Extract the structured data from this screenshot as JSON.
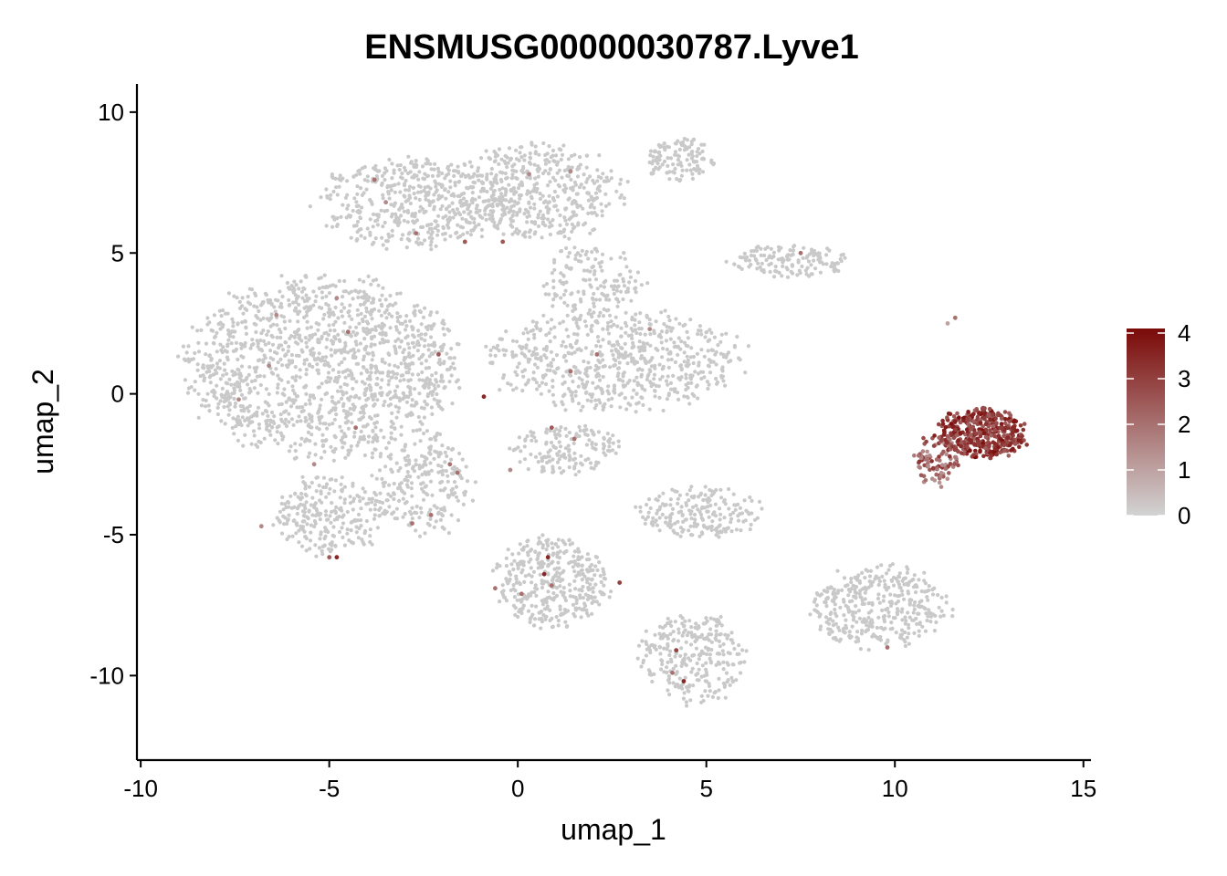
{
  "chart_data": {
    "type": "scatter",
    "title": "ENSMUSG00000030787.Lyve1",
    "xlabel": "umap_1",
    "ylabel": "umap_2",
    "xlim": [
      -10.1,
      15.2
    ],
    "ylim": [
      -13,
      11
    ],
    "xticks": [
      -10,
      -5,
      0,
      5,
      10,
      15
    ],
    "xtick_labels": [
      "-10",
      "-5",
      "0",
      "5",
      "10",
      "15"
    ],
    "yticks": [
      -10,
      -5,
      0,
      5,
      10
    ],
    "ytick_labels": [
      "-10",
      "-5",
      "0",
      "5",
      "10"
    ],
    "grid": false,
    "legend": {
      "position": "right",
      "type": "colorbar",
      "min": 0,
      "max": 4.1,
      "ticks": [
        0,
        1,
        2,
        3,
        4
      ],
      "tick_labels": [
        "0",
        "1",
        "2",
        "3",
        "4"
      ],
      "low_color": "#d3d3d3",
      "high_color": "#7a0a08"
    },
    "point_color_low": "#c9c9c9",
    "clusters": [
      {
        "cx": -5.2,
        "cy": 1.0,
        "rx": 3.6,
        "ry": 3.2,
        "n": 1400
      },
      {
        "cx": -5.0,
        "cy": -4.3,
        "rx": 1.5,
        "ry": 1.4,
        "n": 250
      },
      {
        "cx": -2.8,
        "cy": 6.8,
        "rx": 2.6,
        "ry": 1.6,
        "n": 500
      },
      {
        "cx": 0.6,
        "cy": 7.2,
        "rx": 2.2,
        "ry": 1.7,
        "n": 450
      },
      {
        "cx": 4.3,
        "cy": 8.3,
        "rx": 0.9,
        "ry": 0.8,
        "n": 120
      },
      {
        "cx": 2.6,
        "cy": 1.2,
        "rx": 3.4,
        "ry": 1.8,
        "n": 650
      },
      {
        "cx": 2.0,
        "cy": 4.0,
        "rx": 1.4,
        "ry": 1.3,
        "n": 150
      },
      {
        "cx": -2.5,
        "cy": -3.2,
        "rx": 1.3,
        "ry": 1.8,
        "n": 230
      },
      {
        "cx": 1.2,
        "cy": -2.0,
        "rx": 1.5,
        "ry": 0.9,
        "n": 160
      },
      {
        "cx": 0.9,
        "cy": -6.7,
        "rx": 1.5,
        "ry": 1.6,
        "n": 380
      },
      {
        "cx": 4.8,
        "cy": -4.2,
        "rx": 1.7,
        "ry": 0.9,
        "n": 200
      },
      {
        "cx": 4.6,
        "cy": -9.4,
        "rx": 1.4,
        "ry": 1.6,
        "n": 280
      },
      {
        "cx": 9.6,
        "cy": -7.6,
        "rx": 1.8,
        "ry": 1.5,
        "n": 380
      },
      {
        "cx": 7.2,
        "cy": 4.7,
        "rx": 1.6,
        "ry": 0.6,
        "n": 140
      }
    ],
    "expressing_cluster": {
      "cx": 12.3,
      "cy": -1.4,
      "rx": 1.2,
      "ry": 0.9,
      "n": 420
    },
    "expressing_tail": {
      "cx": 11.1,
      "cy": -2.4,
      "rx": 0.6,
      "ry": 0.9,
      "n": 100
    },
    "sparse_expressing_points": [
      [
        -4.8,
        -5.8,
        3.5
      ],
      [
        -5.0,
        -5.8,
        2.5
      ],
      [
        -2.7,
        5.7,
        2.0
      ],
      [
        -3.8,
        7.6,
        2.0
      ],
      [
        -1.4,
        5.4,
        2.5
      ],
      [
        -0.4,
        5.4,
        2.5
      ],
      [
        -2.1,
        1.4,
        2.5
      ],
      [
        -4.8,
        3.4,
        1.5
      ],
      [
        -4.5,
        2.2,
        2.0
      ],
      [
        -6.6,
        1.0,
        1.5
      ],
      [
        -7.4,
        -0.2,
        1.5
      ],
      [
        -6.4,
        2.8,
        1.5
      ],
      [
        -0.9,
        -0.1,
        3.5
      ],
      [
        -1.8,
        -2.5,
        2.0
      ],
      [
        -1.6,
        -2.8,
        2.0
      ],
      [
        -0.2,
        -2.7,
        1.5
      ],
      [
        0.8,
        -5.8,
        3.5
      ],
      [
        0.7,
        -6.4,
        3.5
      ],
      [
        0.9,
        -6.8,
        2.0
      ],
      [
        0.1,
        -7.1,
        2.0
      ],
      [
        -0.6,
        -6.9,
        2.0
      ],
      [
        2.7,
        -6.7,
        3.0
      ],
      [
        0.9,
        -1.2,
        2.5
      ],
      [
        1.5,
        -1.6,
        2.0
      ],
      [
        4.4,
        -10.2,
        3.5
      ],
      [
        4.1,
        -9.9,
        2.0
      ],
      [
        4.2,
        -9.1,
        3.0
      ],
      [
        9.8,
        -9.0,
        2.0
      ],
      [
        1.4,
        7.9,
        1.5
      ],
      [
        0.3,
        7.8,
        1.5
      ],
      [
        2.1,
        1.4,
        2.0
      ],
      [
        1.4,
        0.8,
        2.0
      ],
      [
        -4.3,
        -1.2,
        2.0
      ],
      [
        -5.4,
        -2.5,
        1.5
      ],
      [
        -3.5,
        6.8,
        1.5
      ],
      [
        3.5,
        2.3,
        1.5
      ],
      [
        -6.8,
        -4.7,
        1.5
      ],
      [
        -2.3,
        -4.3,
        2.0
      ],
      [
        -2.8,
        -4.6,
        2.0
      ],
      [
        7.5,
        5.0,
        2.0
      ],
      [
        11.6,
        2.7,
        2.0
      ],
      [
        11.4,
        2.5,
        1.0
      ]
    ]
  }
}
